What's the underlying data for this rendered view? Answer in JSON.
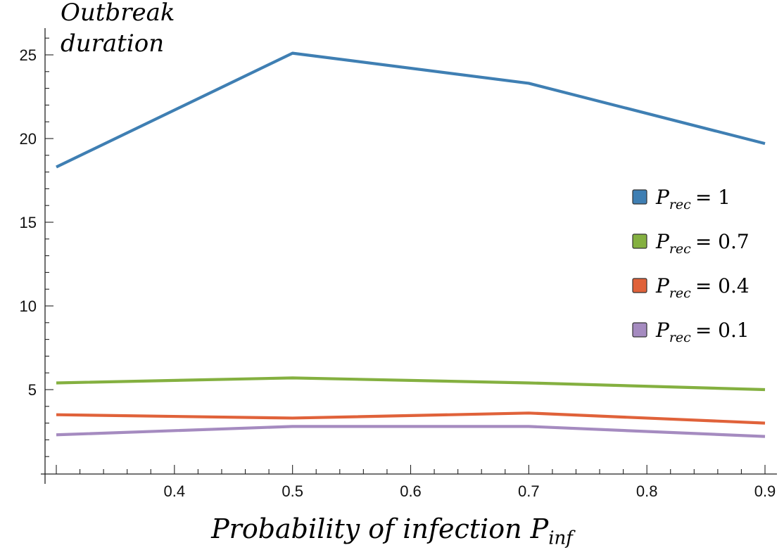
{
  "chart_data": {
    "type": "line",
    "title": "",
    "ylabel_line1": "Outbreak",
    "ylabel_line2": "duration",
    "xlabel_main": "Probability of infection P",
    "xlabel_sub": "inf",
    "xlim": [
      0.3,
      0.9
    ],
    "ylim": [
      0,
      26.5
    ],
    "xticks": [
      0.4,
      0.5,
      0.6,
      0.7,
      0.8,
      0.9
    ],
    "xtick_labels": [
      "0.4",
      "0.5",
      "0.6",
      "0.7",
      "0.8",
      "0.9"
    ],
    "yticks": [
      5,
      10,
      15,
      20,
      25
    ],
    "ytick_labels": [
      "5",
      "10",
      "15",
      "20",
      "25"
    ],
    "x": [
      0.3,
      0.5,
      0.7,
      0.9
    ],
    "series": [
      {
        "name": "P_rec = 1",
        "legend_main": "P",
        "legend_sub": "rec",
        "legend_value": "= 1",
        "color": "#3F7FB3",
        "values": [
          18.3,
          25.1,
          23.3,
          19.7
        ]
      },
      {
        "name": "P_rec = 0.7",
        "legend_main": "P",
        "legend_sub": "rec",
        "legend_value": "= 0.7",
        "color": "#84B040",
        "values": [
          5.4,
          5.7,
          5.4,
          5.0
        ]
      },
      {
        "name": "P_rec = 0.4",
        "legend_main": "P",
        "legend_sub": "rec",
        "legend_value": "= 0.4",
        "color": "#E0623A",
        "values": [
          3.5,
          3.3,
          3.6,
          3.0
        ]
      },
      {
        "name": "P_rec = 0.1",
        "legend_main": "P",
        "legend_sub": "rec",
        "legend_value": "= 0.1",
        "color": "#A58BC0",
        "values": [
          2.3,
          2.8,
          2.8,
          2.2
        ]
      }
    ],
    "legend_position": "right"
  }
}
